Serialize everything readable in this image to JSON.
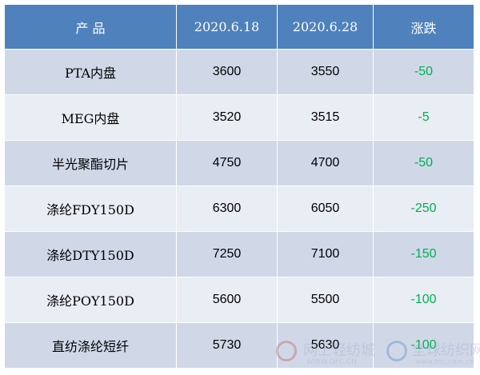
{
  "table": {
    "headers": [
      "产 品",
      "2020.6.18",
      "2020.6.28",
      "涨跌"
    ],
    "rows": [
      [
        "PTA内盘",
        "3600",
        "3550",
        "-50"
      ],
      [
        "MEG内盘",
        "3520",
        "3515",
        "-5"
      ],
      [
        "半光聚酯切片",
        "4750",
        "4700",
        "-50"
      ],
      [
        "涤纶FDY150D",
        "6300",
        "6050",
        "-250"
      ],
      [
        "涤纶DTY150D",
        "7250",
        "7100",
        "-150"
      ],
      [
        "涤纶POY150D",
        "5600",
        "5500",
        "-100"
      ],
      [
        "直纺涤纶短纤",
        "5730",
        "5630",
        "-100"
      ]
    ]
  },
  "watermark": {
    "left_name": "网上轻纺城",
    "left_url": "WWW.QFC.CN",
    "right_name": "全球纺织网",
    "right_url": "www.tnc.com.cn"
  },
  "colors": {
    "header_bg": "#4f81bd",
    "row_dark": "#d0d8e8",
    "row_light": "#e9edf4",
    "change_text": "#00b050"
  }
}
